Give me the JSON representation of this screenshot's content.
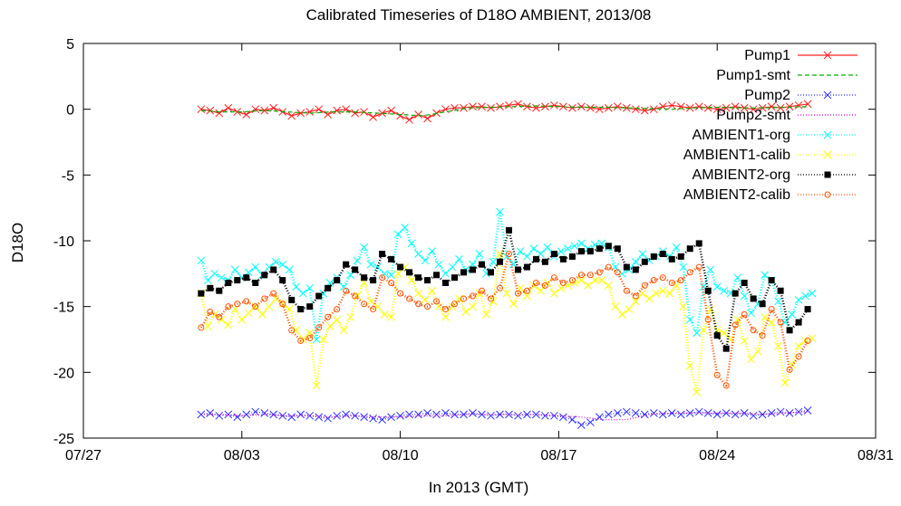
{
  "chart_data": {
    "type": "line",
    "title": "Calibrated Timeseries of D18O AMBIENT, 2013/08",
    "xlabel": "In 2013 (GMT)",
    "ylabel": "D18O",
    "ylim": [
      -25,
      5
    ],
    "yticks": [
      5,
      0,
      -5,
      -10,
      -15,
      -20,
      -25
    ],
    "xlim_days": [
      0,
      35
    ],
    "xticks": [
      {
        "day": 0,
        "label": "07/27"
      },
      {
        "day": 7,
        "label": "08/03"
      },
      {
        "day": 14,
        "label": "08/10"
      },
      {
        "day": 21,
        "label": "08/17"
      },
      {
        "day": 28,
        "label": "08/24"
      },
      {
        "day": 35,
        "label": "08/31"
      }
    ],
    "legend_position": "top-right",
    "grid": false,
    "series": [
      {
        "name": "Pump1",
        "color": "#ff2020",
        "marker": "x",
        "style": "solid",
        "x": [
          5.2,
          5.6,
          6.0,
          6.4,
          6.8,
          7.2,
          7.6,
          8.0,
          8.4,
          8.8,
          9.2,
          9.6,
          10.0,
          10.4,
          10.8,
          11.2,
          11.6,
          12.0,
          12.4,
          12.8,
          13.2,
          13.6,
          14.0,
          14.4,
          14.8,
          15.2,
          15.6,
          16.0,
          16.4,
          16.8,
          17.2,
          17.6,
          18.0,
          18.4,
          18.8,
          19.2,
          19.6,
          20.0,
          20.4,
          20.8,
          21.2,
          21.6,
          22.0,
          22.4,
          22.8,
          23.2,
          23.6,
          24.0,
          24.4,
          24.8,
          25.2,
          25.6,
          26.0,
          26.4,
          26.8,
          27.2,
          27.6,
          28.0,
          28.4,
          28.8,
          29.2,
          29.6,
          30.0,
          30.4,
          30.8,
          31.2,
          31.6,
          32.0
        ],
        "y": [
          0.0,
          -0.1,
          -0.3,
          0.1,
          -0.2,
          -0.4,
          0.0,
          -0.1,
          0.1,
          -0.2,
          -0.5,
          -0.3,
          -0.2,
          0.0,
          -0.4,
          -0.1,
          0.0,
          -0.3,
          -0.2,
          -0.6,
          -0.3,
          -0.1,
          -0.5,
          -0.8,
          -0.4,
          -0.7,
          -0.3,
          0.0,
          0.1,
          0.1,
          0.2,
          0.2,
          0.1,
          0.2,
          0.3,
          0.4,
          0.2,
          0.1,
          0.2,
          0.3,
          0.2,
          0.1,
          0.2,
          0.1,
          0.0,
          0.1,
          0.2,
          0.1,
          0.0,
          -0.1,
          0.0,
          0.2,
          0.3,
          0.2,
          0.1,
          0.2,
          0.1,
          0.0,
          0.1,
          0.2,
          0.1,
          0.0,
          0.1,
          0.2,
          0.1,
          0.2,
          0.3,
          0.4
        ]
      },
      {
        "name": "Pump1-smt",
        "color": "#00b000",
        "marker": "none",
        "style": "dashed",
        "x": [
          5.2,
          6.0,
          7.0,
          8.0,
          9.0,
          10.0,
          11.0,
          12.0,
          13.0,
          14.0,
          15.0,
          16.0,
          17.0,
          18.0,
          19.0,
          20.0,
          21.0,
          22.0,
          23.0,
          24.0,
          25.0,
          26.0,
          27.0,
          28.0,
          29.0,
          30.0,
          31.0,
          32.0
        ],
        "y": [
          -0.1,
          -0.2,
          -0.2,
          -0.1,
          -0.2,
          -0.3,
          -0.2,
          -0.2,
          -0.3,
          -0.4,
          -0.5,
          -0.2,
          0.1,
          0.15,
          0.2,
          0.25,
          0.2,
          0.15,
          0.15,
          0.1,
          0.05,
          0.0,
          0.1,
          0.15,
          0.1,
          0.1,
          0.15,
          0.2
        ]
      },
      {
        "name": "Pump2",
        "color": "#3030ff",
        "marker": "x",
        "style": "dotted",
        "x": [
          5.2,
          5.6,
          6.0,
          6.4,
          6.8,
          7.2,
          7.6,
          8.0,
          8.4,
          8.8,
          9.2,
          9.6,
          10.0,
          10.4,
          10.8,
          11.2,
          11.6,
          12.0,
          12.4,
          12.8,
          13.2,
          13.6,
          14.0,
          14.4,
          14.8,
          15.2,
          15.6,
          16.0,
          16.4,
          16.8,
          17.2,
          17.6,
          18.0,
          18.4,
          18.8,
          19.2,
          19.6,
          20.0,
          20.4,
          20.8,
          21.2,
          21.6,
          22.0,
          22.4,
          22.8,
          23.2,
          23.6,
          24.0,
          24.4,
          24.8,
          25.2,
          25.6,
          26.0,
          26.4,
          26.8,
          27.2,
          27.6,
          28.0,
          28.4,
          28.8,
          29.2,
          29.6,
          30.0,
          30.4,
          30.8,
          31.2,
          31.6,
          32.0
        ],
        "y": [
          -23.2,
          -23.1,
          -23.3,
          -23.2,
          -23.4,
          -23.2,
          -23.0,
          -23.1,
          -23.2,
          -23.3,
          -23.4,
          -23.2,
          -23.3,
          -23.4,
          -23.5,
          -23.3,
          -23.2,
          -23.3,
          -23.4,
          -23.5,
          -23.6,
          -23.4,
          -23.3,
          -23.2,
          -23.2,
          -23.1,
          -23.2,
          -23.1,
          -23.2,
          -23.2,
          -23.1,
          -23.2,
          -23.3,
          -23.2,
          -23.2,
          -23.3,
          -23.2,
          -23.2,
          -23.3,
          -23.3,
          -23.4,
          -23.6,
          -24.0,
          -23.8,
          -23.4,
          -23.2,
          -23.1,
          -23.0,
          -23.1,
          -23.2,
          -23.1,
          -23.2,
          -23.1,
          -23.2,
          -23.1,
          -23.0,
          -23.1,
          -23.2,
          -23.1,
          -23.2,
          -23.1,
          -23.3,
          -23.2,
          -23.1,
          -23.0,
          -23.1,
          -23.0,
          -22.9
        ]
      },
      {
        "name": "Pump2-smt",
        "color": "#cc00cc",
        "marker": "none",
        "style": "dotted",
        "x": [
          5.2,
          6.0,
          7.0,
          8.0,
          9.0,
          10.0,
          11.0,
          12.0,
          13.0,
          14.0,
          15.0,
          16.0,
          17.0,
          18.0,
          19.0,
          20.0,
          21.0,
          22.0,
          23.0,
          24.0,
          25.0,
          26.0,
          27.0,
          28.0,
          29.0,
          30.0,
          31.0,
          32.0
        ],
        "y": [
          -23.2,
          -23.2,
          -23.3,
          -23.2,
          -23.3,
          -23.3,
          -23.4,
          -23.3,
          -23.4,
          -23.4,
          -23.3,
          -23.3,
          -23.2,
          -23.2,
          -23.2,
          -23.2,
          -23.3,
          -23.4,
          -23.6,
          -23.6,
          -23.2,
          -23.1,
          -23.1,
          -23.1,
          -23.1,
          -23.2,
          -23.1,
          -23.0
        ]
      },
      {
        "name": "AMBIENT1-org",
        "color": "#00ffff",
        "marker": "x",
        "style": "dotted",
        "x": [
          5.2,
          5.5,
          5.8,
          6.1,
          6.4,
          6.7,
          7.0,
          7.3,
          7.6,
          7.9,
          8.2,
          8.5,
          8.8,
          9.1,
          9.4,
          9.7,
          10.0,
          10.3,
          10.6,
          10.9,
          11.2,
          11.5,
          11.8,
          12.1,
          12.4,
          12.7,
          13.0,
          13.3,
          13.6,
          13.9,
          14.2,
          14.5,
          14.8,
          15.1,
          15.4,
          15.7,
          16.0,
          16.3,
          16.6,
          16.9,
          17.2,
          17.5,
          17.8,
          18.1,
          18.4,
          18.7,
          19.0,
          19.3,
          19.6,
          19.9,
          20.2,
          20.5,
          20.8,
          21.1,
          21.4,
          21.7,
          22.0,
          22.3,
          22.6,
          22.9,
          23.2,
          23.5,
          23.8,
          24.1,
          24.4,
          24.7,
          25.0,
          25.3,
          25.6,
          25.9,
          26.2,
          26.5,
          26.8,
          27.1,
          27.4,
          27.7,
          28.0,
          28.3,
          28.6,
          28.9,
          29.2,
          29.5,
          29.8,
          30.1,
          30.4,
          30.7,
          31.0,
          31.3,
          31.6,
          31.9,
          32.2
        ],
        "y": [
          -11.5,
          -13.0,
          -12.5,
          -12.8,
          -13.0,
          -12.2,
          -12.8,
          -12.4,
          -12.0,
          -12.6,
          -12.0,
          -11.6,
          -11.8,
          -12.2,
          -13.5,
          -14.0,
          -13.6,
          -17.5,
          -14.0,
          -13.2,
          -12.8,
          -13.5,
          -12.6,
          -11.5,
          -10.5,
          -11.8,
          -12.0,
          -12.5,
          -12.6,
          -9.5,
          -9.0,
          -10.2,
          -11.0,
          -11.5,
          -10.8,
          -11.8,
          -12.5,
          -12.0,
          -11.4,
          -12.2,
          -11.8,
          -11.0,
          -12.5,
          -11.6,
          -7.8,
          -11.2,
          -11.8,
          -10.8,
          -11.2,
          -10.6,
          -11.0,
          -10.5,
          -11.2,
          -10.8,
          -10.6,
          -10.4,
          -10.2,
          -10.6,
          -10.3,
          -10.2,
          -10.5,
          -12.0,
          -12.5,
          -12.2,
          -11.6,
          -11.0,
          -11.5,
          -11.2,
          -10.8,
          -11.2,
          -10.5,
          -12.0,
          -16.0,
          -17.0,
          -13.5,
          -12.2,
          -13.5,
          -13.8,
          -14.0,
          -12.8,
          -14.2,
          -15.5,
          -14.8,
          -12.6,
          -13.0,
          -14.6,
          -16.2,
          -15.6,
          -14.5,
          -14.2,
          -14.0
        ]
      },
      {
        "name": "AMBIENT1-calib",
        "color": "#ffff00",
        "marker": "x",
        "style": "dotted",
        "x": [
          5.2,
          5.5,
          5.8,
          6.1,
          6.4,
          6.7,
          7.0,
          7.3,
          7.6,
          7.9,
          8.2,
          8.5,
          8.8,
          9.1,
          9.4,
          9.7,
          10.0,
          10.3,
          10.6,
          10.9,
          11.2,
          11.5,
          11.8,
          12.1,
          12.4,
          12.7,
          13.0,
          13.3,
          13.6,
          13.9,
          14.2,
          14.5,
          14.8,
          15.1,
          15.4,
          15.7,
          16.0,
          16.3,
          16.6,
          16.9,
          17.2,
          17.5,
          17.8,
          18.1,
          18.4,
          18.7,
          19.0,
          19.3,
          19.6,
          19.9,
          20.2,
          20.5,
          20.8,
          21.1,
          21.4,
          21.7,
          22.0,
          22.3,
          22.6,
          22.9,
          23.2,
          23.5,
          23.8,
          24.1,
          24.4,
          24.7,
          25.0,
          25.3,
          25.6,
          25.9,
          26.2,
          26.5,
          26.8,
          27.1,
          27.4,
          27.7,
          28.0,
          28.3,
          28.6,
          28.9,
          29.2,
          29.5,
          29.8,
          30.1,
          30.4,
          30.7,
          31.0,
          31.3,
          31.6,
          31.9,
          32.2
        ],
        "y": [
          -14.0,
          -16.5,
          -15.6,
          -16.0,
          -16.4,
          -15.2,
          -16.0,
          -15.5,
          -15.0,
          -15.6,
          -15.0,
          -14.4,
          -14.8,
          -15.2,
          -16.8,
          -17.5,
          -17.0,
          -21.0,
          -17.5,
          -16.5,
          -16.0,
          -16.8,
          -15.8,
          -14.2,
          -13.2,
          -14.6,
          -15.0,
          -15.6,
          -15.8,
          -12.5,
          -12.0,
          -13.0,
          -14.0,
          -14.5,
          -13.8,
          -15.0,
          -15.8,
          -15.0,
          -14.4,
          -15.4,
          -15.0,
          -14.0,
          -15.6,
          -14.6,
          -11.0,
          -14.0,
          -14.8,
          -13.6,
          -14.2,
          -13.4,
          -13.8,
          -13.2,
          -14.0,
          -13.6,
          -13.4,
          -13.2,
          -13.0,
          -13.4,
          -13.0,
          -13.0,
          -13.4,
          -15.0,
          -15.6,
          -15.2,
          -14.6,
          -14.0,
          -14.4,
          -14.0,
          -13.8,
          -14.0,
          -13.4,
          -15.0,
          -19.5,
          -21.5,
          -16.8,
          -15.2,
          -16.8,
          -17.0,
          -17.5,
          -16.0,
          -17.6,
          -19.0,
          -18.4,
          -15.8,
          -16.2,
          -18.0,
          -20.8,
          -19.4,
          -18.0,
          -17.6,
          -17.4
        ]
      },
      {
        "name": "AMBIENT2-org",
        "color": "#000000",
        "marker": "square",
        "style": "dotted",
        "x": [
          5.2,
          5.6,
          6.0,
          6.4,
          6.8,
          7.2,
          7.6,
          8.0,
          8.4,
          8.8,
          9.2,
          9.6,
          10.0,
          10.4,
          10.8,
          11.2,
          11.6,
          12.0,
          12.4,
          12.8,
          13.2,
          13.6,
          14.0,
          14.4,
          14.8,
          15.2,
          15.6,
          16.0,
          16.4,
          16.8,
          17.2,
          17.6,
          18.0,
          18.4,
          18.8,
          19.2,
          19.6,
          20.0,
          20.4,
          20.8,
          21.2,
          21.6,
          22.0,
          22.4,
          22.8,
          23.2,
          23.6,
          24.0,
          24.4,
          24.8,
          25.2,
          25.6,
          26.0,
          26.4,
          26.8,
          27.2,
          27.6,
          28.0,
          28.4,
          28.8,
          29.2,
          29.6,
          30.0,
          30.4,
          30.8,
          31.2,
          31.6,
          32.0
        ],
        "y": [
          -14.0,
          -13.6,
          -13.8,
          -13.2,
          -13.0,
          -12.8,
          -13.2,
          -12.6,
          -12.2,
          -13.0,
          -14.5,
          -15.2,
          -15.0,
          -14.2,
          -13.6,
          -13.0,
          -11.8,
          -12.2,
          -12.8,
          -13.0,
          -11.0,
          -11.4,
          -12.0,
          -12.4,
          -12.8,
          -13.0,
          -12.6,
          -13.2,
          -12.8,
          -12.4,
          -12.2,
          -11.8,
          -12.4,
          -11.6,
          -9.2,
          -12.2,
          -12.0,
          -11.4,
          -11.6,
          -11.0,
          -11.4,
          -11.2,
          -10.8,
          -10.8,
          -10.6,
          -10.4,
          -10.6,
          -12.0,
          -12.2,
          -11.6,
          -11.2,
          -11.0,
          -11.4,
          -11.2,
          -10.6,
          -10.2,
          -13.8,
          -17.2,
          -18.2,
          -14.0,
          -13.2,
          -14.4,
          -14.8,
          -13.0,
          -13.8,
          -16.8,
          -16.2,
          -15.2
        ]
      },
      {
        "name": "AMBIENT2-calib",
        "color": "#ff5000",
        "marker": "circle",
        "style": "dotted",
        "x": [
          5.2,
          5.6,
          6.0,
          6.4,
          6.8,
          7.2,
          7.6,
          8.0,
          8.4,
          8.8,
          9.2,
          9.6,
          10.0,
          10.4,
          10.8,
          11.2,
          11.6,
          12.0,
          12.4,
          12.8,
          13.2,
          13.6,
          14.0,
          14.4,
          14.8,
          15.2,
          15.6,
          16.0,
          16.4,
          16.8,
          17.2,
          17.6,
          18.0,
          18.4,
          18.8,
          19.2,
          19.6,
          20.0,
          20.4,
          20.8,
          21.2,
          21.6,
          22.0,
          22.4,
          22.8,
          23.2,
          23.6,
          24.0,
          24.4,
          24.8,
          25.2,
          25.6,
          26.0,
          26.4,
          26.8,
          27.2,
          27.6,
          28.0,
          28.4,
          28.8,
          29.2,
          29.6,
          30.0,
          30.4,
          30.8,
          31.2,
          31.6,
          32.0
        ],
        "y": [
          -16.6,
          -15.4,
          -15.8,
          -15.0,
          -14.8,
          -14.6,
          -15.0,
          -14.4,
          -14.0,
          -14.8,
          -16.8,
          -17.6,
          -17.4,
          -16.6,
          -15.8,
          -15.2,
          -13.8,
          -14.2,
          -14.8,
          -15.2,
          -12.8,
          -13.2,
          -14.0,
          -14.4,
          -14.8,
          -15.0,
          -14.6,
          -15.2,
          -14.8,
          -14.4,
          -14.2,
          -13.8,
          -14.4,
          -13.6,
          -11.0,
          -14.0,
          -13.8,
          -13.2,
          -13.4,
          -12.8,
          -13.2,
          -13.0,
          -12.6,
          -12.6,
          -12.4,
          -12.0,
          -12.4,
          -13.8,
          -14.2,
          -13.4,
          -13.0,
          -12.8,
          -13.2,
          -13.0,
          -12.4,
          -12.0,
          -16.0,
          -20.2,
          -21.0,
          -16.4,
          -15.6,
          -16.8,
          -17.2,
          -15.2,
          -16.2,
          -19.8,
          -18.8,
          -17.6
        ]
      }
    ]
  }
}
